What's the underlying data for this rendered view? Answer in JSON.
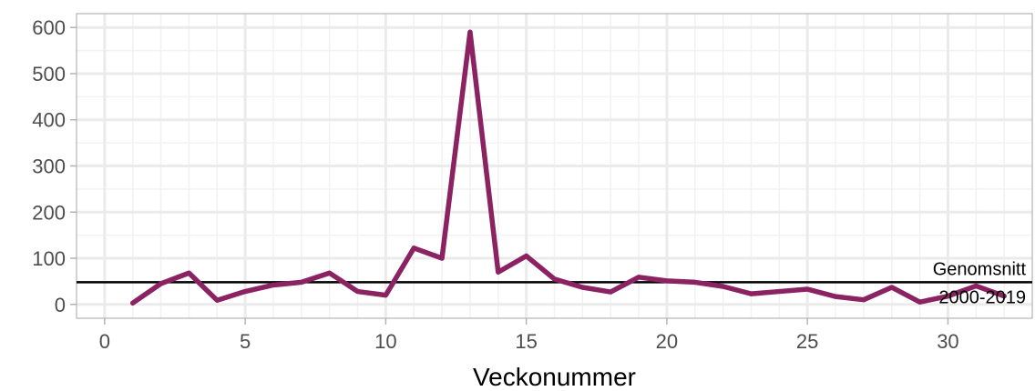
{
  "chart_data": {
    "type": "line",
    "xlabel": "Veckonummer",
    "ylabel": "",
    "xlim": [
      -1,
      33
    ],
    "ylim": [
      -30,
      630
    ],
    "x_ticks": [
      0,
      5,
      10,
      15,
      20,
      25,
      30
    ],
    "x_tick_labels": [
      "0",
      "5",
      "10",
      "15",
      "20",
      "25",
      "30"
    ],
    "y_ticks": [
      0,
      100,
      200,
      300,
      400,
      500,
      600
    ],
    "y_tick_labels": [
      "0",
      "100",
      "200",
      "300",
      "400",
      "500",
      "600"
    ],
    "grid": true,
    "legend": "none",
    "colors": {
      "series": "#8b2262",
      "reference": "#000000"
    },
    "series": [
      {
        "x": [
          1,
          2,
          3,
          4,
          5,
          6,
          7,
          8,
          9,
          10,
          11,
          12,
          13,
          14,
          15,
          16,
          17,
          18,
          19,
          20,
          21,
          22,
          23,
          24,
          25,
          26,
          27,
          28,
          29,
          30,
          31,
          32
        ],
        "values": [
          3,
          45,
          68,
          9,
          28,
          42,
          48,
          68,
          28,
          20,
          122,
          100,
          590,
          70,
          105,
          55,
          37,
          27,
          59,
          51,
          48,
          39,
          23,
          28,
          33,
          17,
          10,
          37,
          5,
          18,
          40,
          18
        ]
      }
    ],
    "reference_line": {
      "y": 48,
      "label_lines": [
        "Genomsnitt",
        "2000-2019"
      ]
    }
  }
}
